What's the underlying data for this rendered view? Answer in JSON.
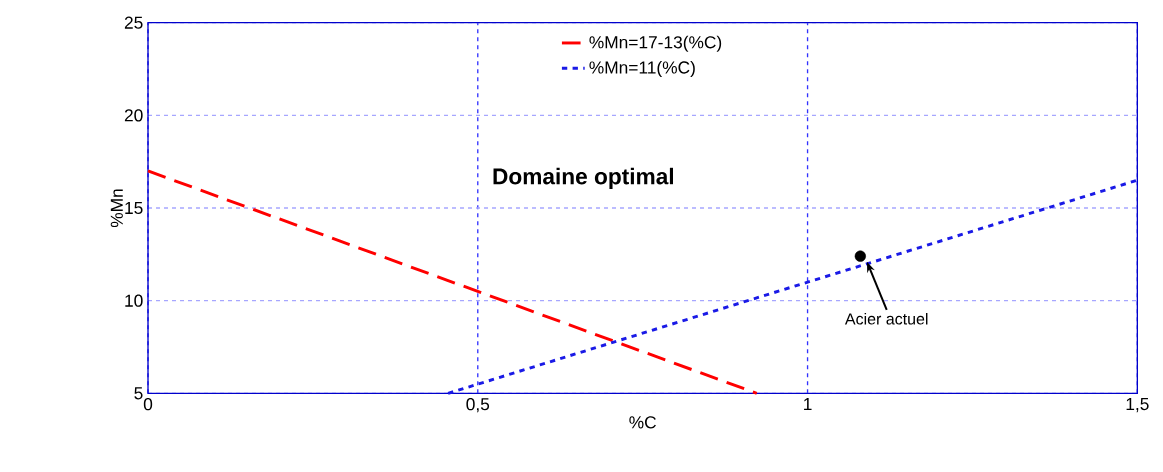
{
  "chart_data": {
    "type": "line",
    "xlabel": "%C",
    "ylabel": "%Mn",
    "xlim": [
      0,
      1.5
    ],
    "ylim": [
      5,
      25
    ],
    "xticks": [
      0,
      {
        "value": 0.5,
        "label": "0,5"
      },
      1,
      {
        "value": 1.5,
        "label": "1,5"
      }
    ],
    "yticks": [
      5,
      10,
      15,
      20,
      25
    ],
    "grid": true,
    "legend": "top",
    "marker": "circle",
    "series": [
      {
        "name": "%Mn=17-13(%C)",
        "color": "#ff0000",
        "line_style": "dashed",
        "marker": "none",
        "x": [
          0,
          0.923
        ],
        "values": [
          17,
          5
        ]
      },
      {
        "name": "%Mn=11(%C)",
        "color": "#1a1ae6",
        "line_style": "dotted",
        "marker": "none",
        "x": [
          0.455,
          1.5
        ],
        "values": [
          5,
          16.5
        ]
      },
      {
        "type": "scatter",
        "color": "#000000",
        "x": [
          1.08
        ],
        "values": [
          12.4
        ]
      }
    ],
    "annotations": [
      "Domaine optimal",
      {
        "text": "Acier actuel",
        "x": 1.09,
        "y": 12.1
      }
    ]
  }
}
